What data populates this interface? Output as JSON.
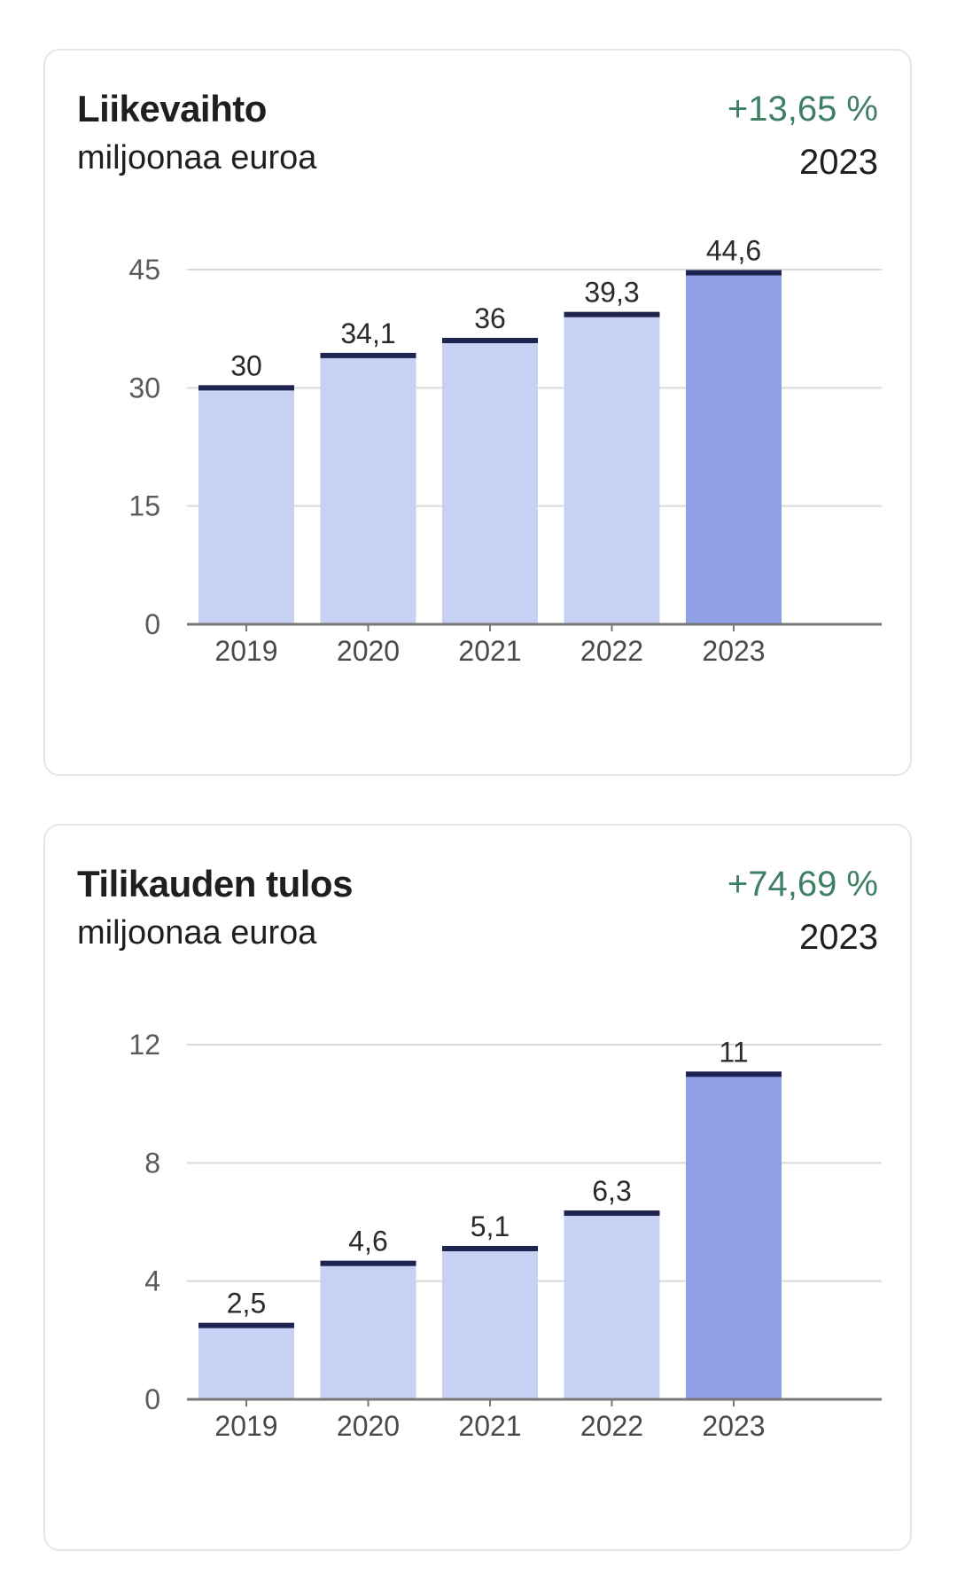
{
  "colors": {
    "bar_default": "#c7d1f3",
    "bar_highlight": "#919fe7",
    "bar_cap": "#1f2350",
    "grid": "#d9d9d9",
    "axis": "#777777",
    "change_positive": "#3f7f63"
  },
  "charts": [
    {
      "title": "Liikevaihto",
      "subtitle": "miljoonaa euroa",
      "change": "+13,65 %",
      "year": "2023"
    },
    {
      "title": "Tilikauden tulos",
      "subtitle": "miljoonaa euroa",
      "change": "+74,69 %",
      "year": "2023"
    }
  ],
  "chart_data": [
    {
      "type": "bar",
      "title": "Liikevaihto",
      "subtitle": "miljoonaa euroa",
      "categories": [
        "2019",
        "2020",
        "2021",
        "2022",
        "2023"
      ],
      "values": [
        30,
        34.1,
        36,
        39.3,
        44.6
      ],
      "value_labels": [
        "30",
        "34,1",
        "36",
        "39,3",
        "44,6"
      ],
      "highlight_category": "2023",
      "ylim": [
        0,
        45
      ],
      "yticks": [
        0,
        15,
        30,
        45
      ],
      "grid": true
    },
    {
      "type": "bar",
      "title": "Tilikauden tulos",
      "subtitle": "miljoonaa euroa",
      "categories": [
        "2019",
        "2020",
        "2021",
        "2022",
        "2023"
      ],
      "values": [
        2.5,
        4.6,
        5.1,
        6.3,
        11
      ],
      "value_labels": [
        "2,5",
        "4,6",
        "5,1",
        "6,3",
        "11"
      ],
      "highlight_category": "2023",
      "ylim": [
        0,
        12
      ],
      "yticks": [
        0,
        4,
        8,
        12
      ],
      "grid": true
    }
  ]
}
